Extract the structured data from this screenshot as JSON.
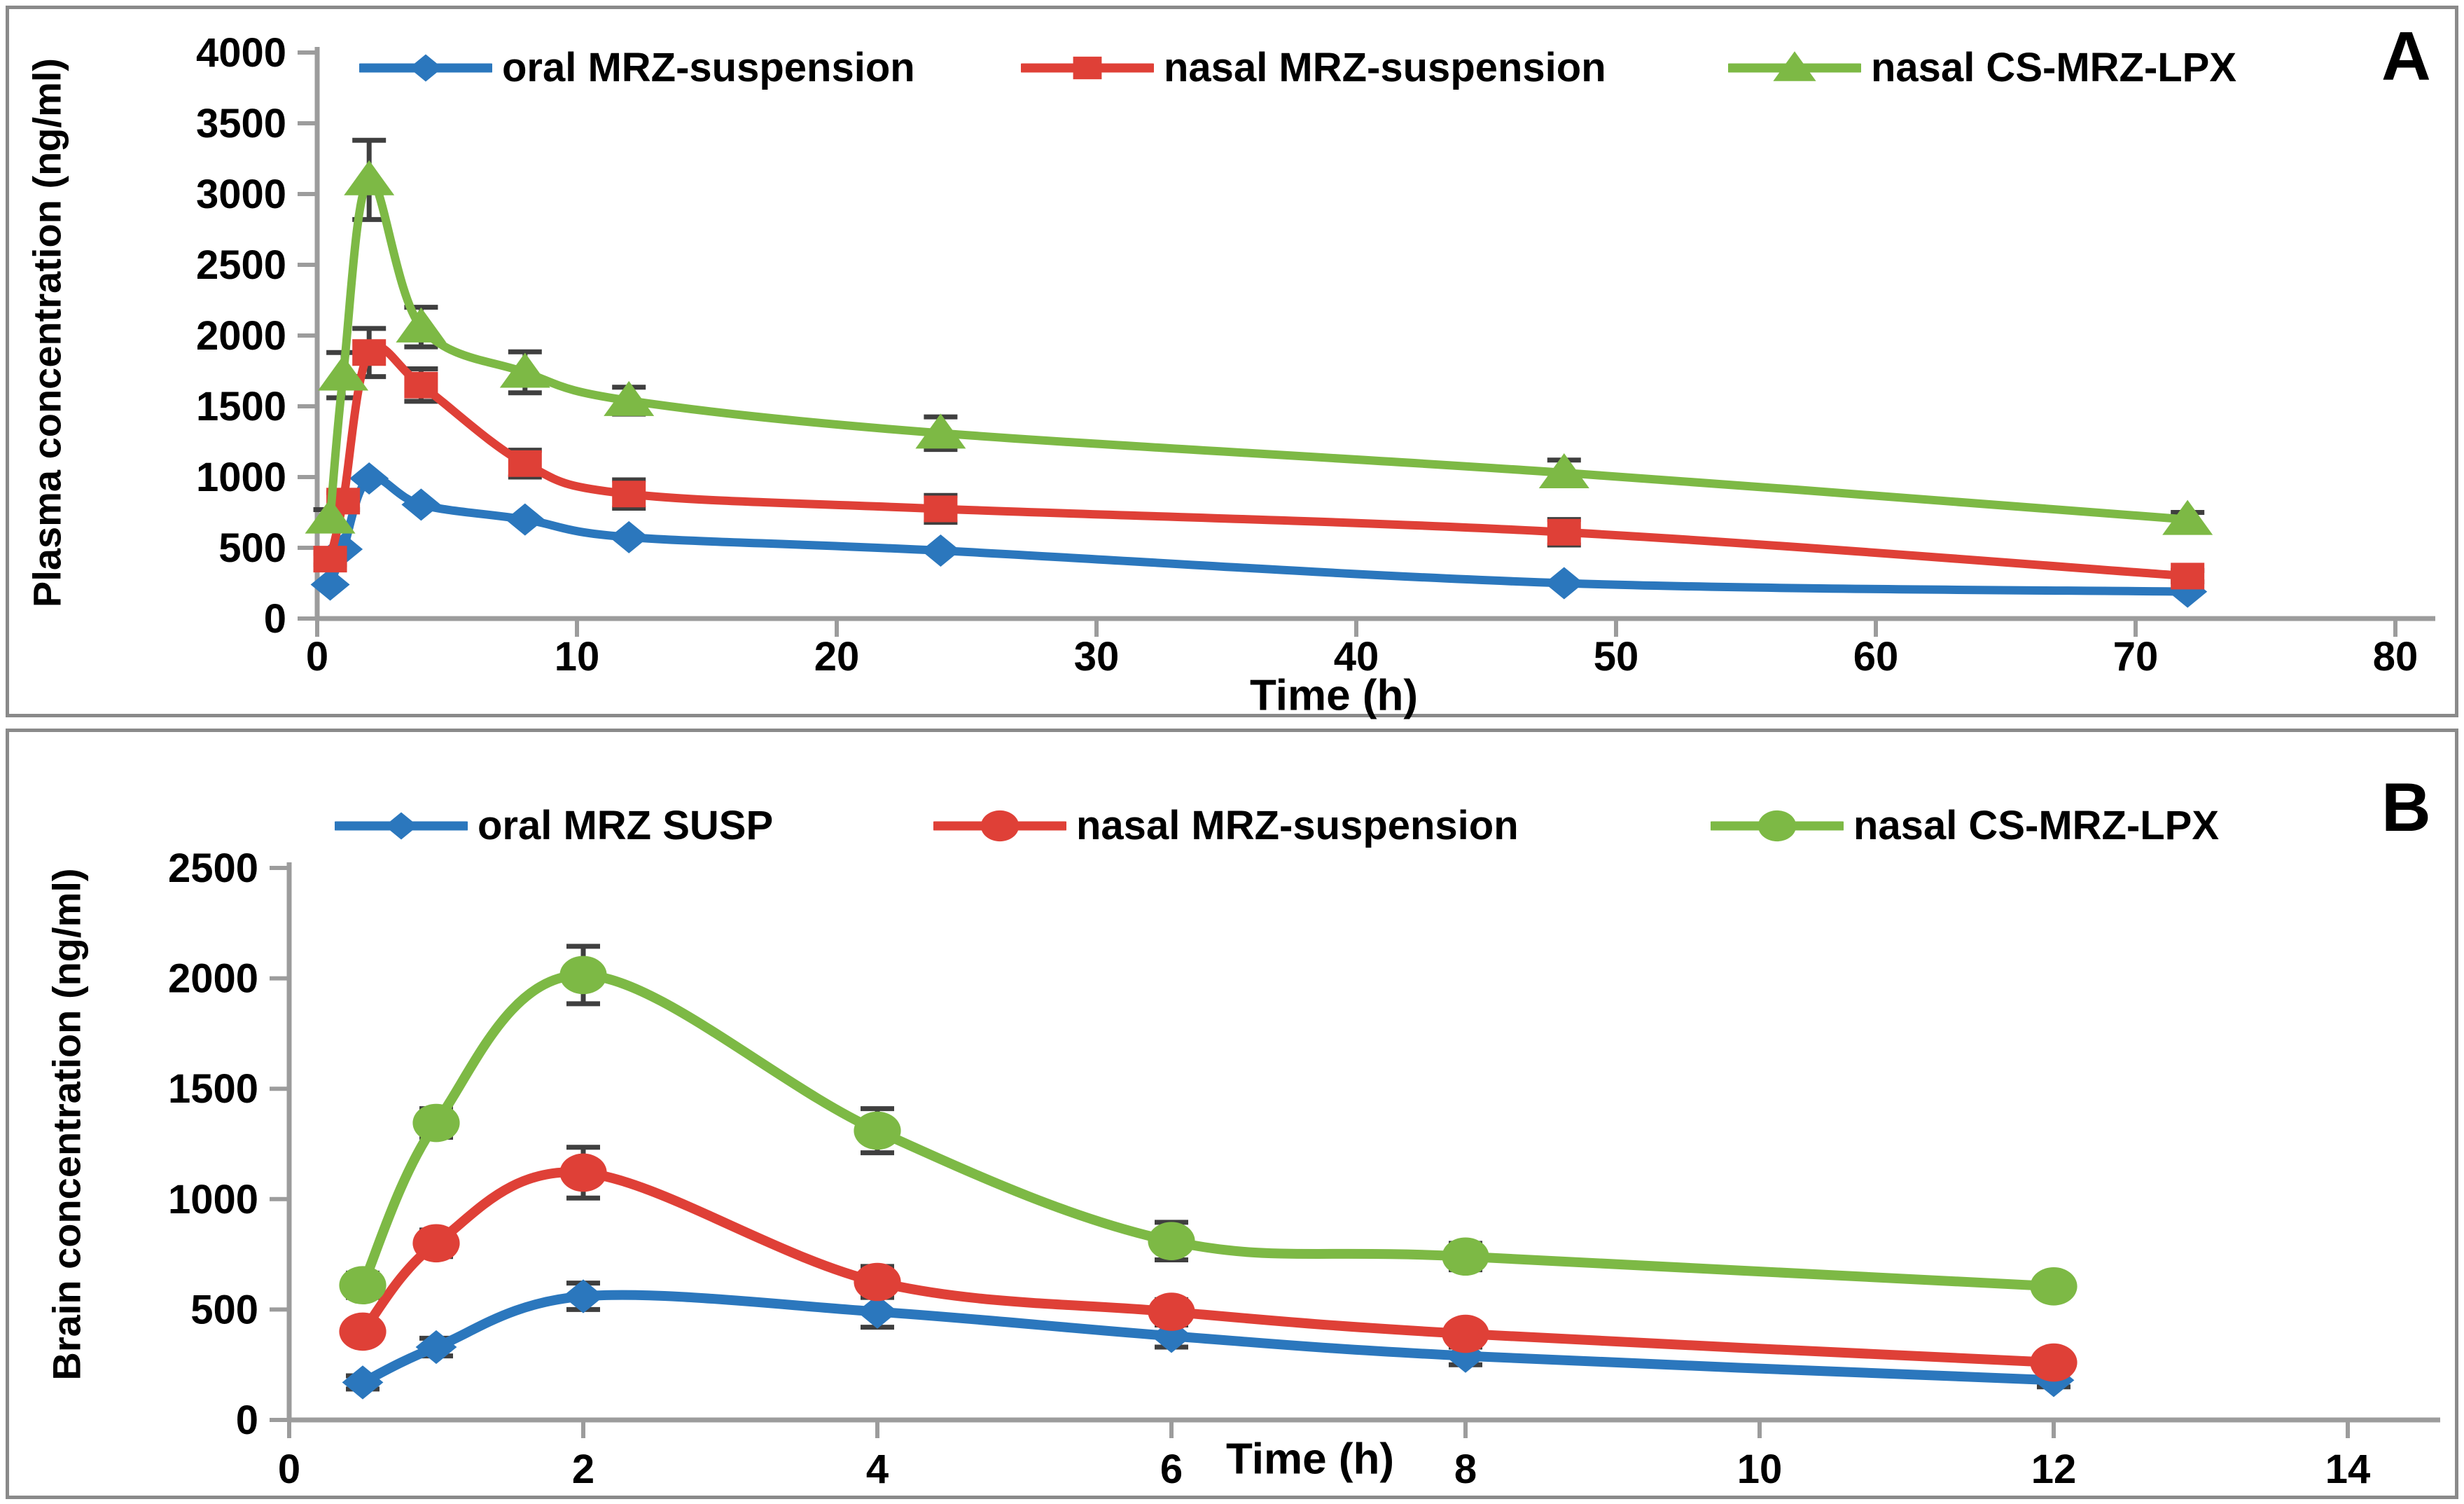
{
  "colors": {
    "oral_blue": "#2B77BD",
    "nasal_red": "#DF4037",
    "lpx_green": "#7DB945",
    "error_bar": "#3F3F3F",
    "axis_gray": "#9C9C9C",
    "panel_border": "#8A8A8A",
    "text": "#000000"
  },
  "chart_data": [
    {
      "type": "line",
      "panel_label": "A",
      "title": "",
      "xlabel": "Time (h)",
      "ylabel": "Plasma concentration (ng/ml)",
      "xlim": [
        0,
        80
      ],
      "ylim": [
        0,
        4000
      ],
      "x_ticks": [
        0,
        10,
        20,
        30,
        40,
        50,
        60,
        70,
        80
      ],
      "y_ticks": [
        0,
        500,
        1000,
        1500,
        2000,
        2500,
        3000,
        3500,
        4000
      ],
      "grid": false,
      "legend_position": "top",
      "x": [
        0.5,
        1,
        2,
        4,
        8,
        12,
        24,
        48,
        72
      ],
      "series": [
        {
          "name": "oral MRZ-suspension",
          "color": "#2B77BD",
          "marker": "diamond",
          "values": [
            240,
            490,
            990,
            805,
            700,
            575,
            480,
            250,
            190
          ],
          "errors": [
            0,
            0,
            0,
            0,
            0,
            0,
            0,
            0,
            0
          ]
        },
        {
          "name": "nasal MRZ-suspension",
          "color": "#DF4037",
          "marker": "square",
          "values": [
            420,
            830,
            1880,
            1650,
            1095,
            880,
            775,
            610,
            300
          ],
          "errors": [
            40,
            60,
            170,
            115,
            95,
            100,
            95,
            90,
            40
          ]
        },
        {
          "name": "nasal CS-MRZ-LPX",
          "color": "#7DB945",
          "marker": "triangle",
          "values": [
            710,
            1720,
            3100,
            2060,
            1740,
            1540,
            1310,
            1030,
            700
          ],
          "errors": [
            60,
            160,
            280,
            140,
            145,
            95,
            115,
            90,
            50
          ]
        }
      ]
    },
    {
      "type": "line",
      "panel_label": "B",
      "title": "",
      "xlabel": "Time (h)",
      "ylabel": "Brain concentration (ng/ml)",
      "xlim": [
        0,
        14
      ],
      "ylim": [
        0,
        2500
      ],
      "x_ticks": [
        0,
        2,
        4,
        6,
        8,
        10,
        12,
        14
      ],
      "y_ticks": [
        0,
        500,
        1000,
        1500,
        2000,
        2500
      ],
      "grid": false,
      "legend_position": "top",
      "x": [
        0.5,
        1,
        2,
        4,
        6,
        8,
        12
      ],
      "series": [
        {
          "name": "oral MRZ SUSP",
          "color": "#2B77BD",
          "marker": "diamond",
          "values": [
            170,
            330,
            560,
            490,
            380,
            290,
            180
          ],
          "errors": [
            30,
            40,
            60,
            70,
            50,
            40,
            30
          ]
        },
        {
          "name": "nasal MRZ-suspension",
          "color": "#DF4037",
          "marker": "circle",
          "values": [
            400,
            800,
            1120,
            625,
            490,
            390,
            260
          ],
          "errors": [
            45,
            60,
            115,
            70,
            55,
            45,
            35
          ]
        },
        {
          "name": "nasal CS-MRZ-LPX",
          "color": "#7DB945",
          "marker": "circle",
          "values": [
            610,
            1345,
            2015,
            1310,
            810,
            740,
            605
          ],
          "errors": [
            55,
            65,
            130,
            100,
            85,
            60,
            40
          ]
        }
      ]
    }
  ]
}
